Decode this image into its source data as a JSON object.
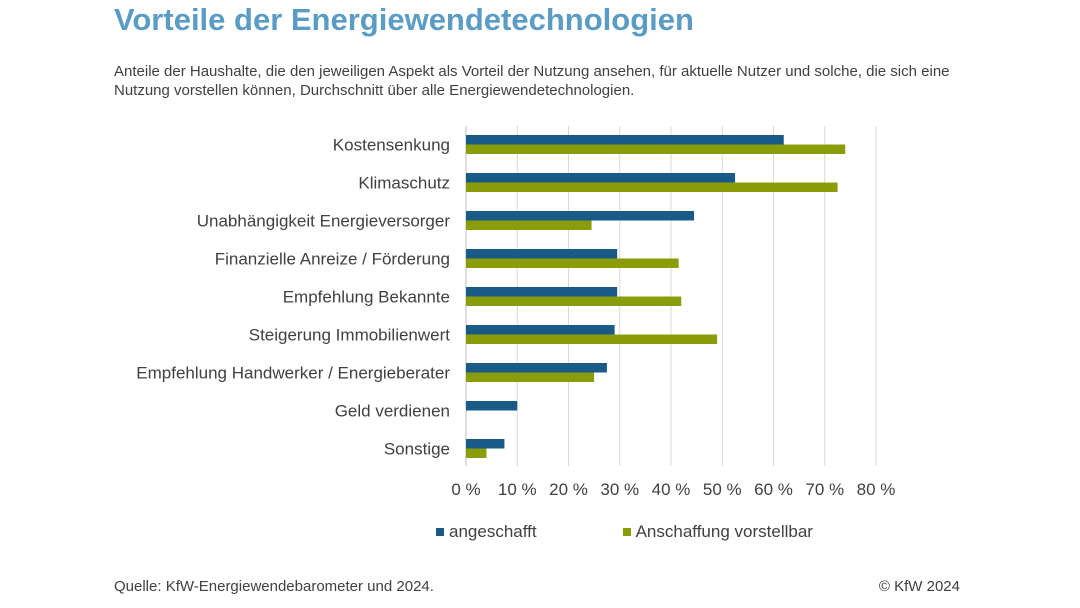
{
  "chart_data": {
    "type": "bar",
    "orientation": "horizontal",
    "title": "Vorteile der Energiewendetechnologien",
    "subtitle": "Anteile der Haushalte, die den jeweiligen Aspekt als Vorteil der Nutzung ansehen, für aktuelle Nutzer und solche, die sich eine Nutzung vorstellen können, Durchschnitt über alle Energiewendetechnologien.",
    "categories": [
      "Kostensenkung",
      "Klimaschutz",
      "Unabhängigkeit Energieversorger",
      "Finanzielle Anreize / Förderung",
      "Empfehlung Bekannte",
      "Steigerung Immobilienwert",
      "Empfehlung Handwerker / Energieberater",
      "Geld verdienen",
      "Sonstige"
    ],
    "series": [
      {
        "name": "angeschafft",
        "color": "#1a5a87",
        "values": [
          62,
          52.5,
          44.5,
          29.5,
          29.5,
          29,
          27.5,
          10,
          7.5
        ]
      },
      {
        "name": "Anschaffung vorstellbar",
        "color": "#8a9c08",
        "values": [
          74,
          72.5,
          24.5,
          41.5,
          42,
          49,
          25,
          null,
          4
        ]
      }
    ],
    "xlim": [
      0,
      80
    ],
    "xticks": [
      "0 %",
      "10 %",
      "20 %",
      "30 %",
      "40 %",
      "50 %",
      "60 %",
      "70 %",
      "80 %"
    ],
    "xlabel": "",
    "ylabel": "",
    "grid": true,
    "legend_position": "bottom"
  },
  "footer": {
    "source": "Quelle: KfW-Energiewendebarometer und 2024.",
    "copyright": "© KfW 2024"
  }
}
